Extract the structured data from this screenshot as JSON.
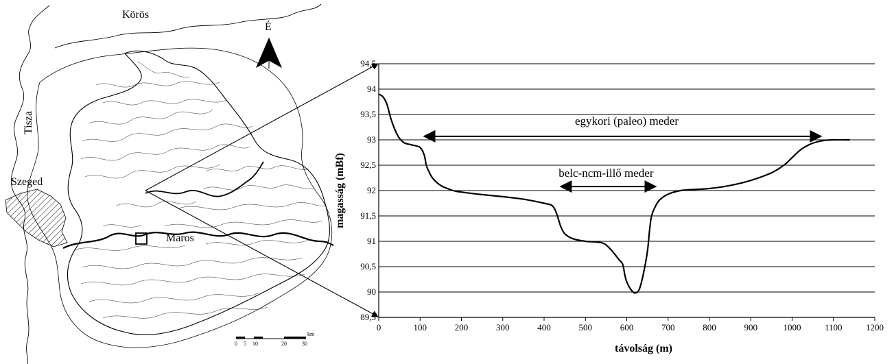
{
  "map": {
    "labels": {
      "koros": "Körös",
      "north": "É",
      "tisza": "Tisza",
      "szeged": "Szeged",
      "maros": "Maros"
    },
    "scale_bar": {
      "ticks": [
        "0",
        "5",
        "10",
        "20",
        "30"
      ],
      "unit": "km"
    },
    "icons": [
      "north-arrow-icon",
      "study-site-marker-icon"
    ]
  },
  "chart_data": {
    "type": "line",
    "xlabel": "távolság (m)",
    "ylabel": "magasság (mBf)",
    "xlim": [
      0,
      1200
    ],
    "ylim": [
      89.5,
      94.5
    ],
    "x_ticks": [
      "0",
      "100",
      "200",
      "300",
      "400",
      "500",
      "600",
      "700",
      "800",
      "900",
      "1000",
      "1100",
      "1200"
    ],
    "y_ticks": [
      "89,5",
      "90",
      "90,5",
      "91",
      "91,5",
      "92",
      "92,5",
      "93",
      "93,5",
      "94",
      "94,5"
    ],
    "grid": "horizontal",
    "series": [
      {
        "x": [
          0,
          10,
          20,
          30,
          45,
          60,
          80,
          100,
          110,
          115,
          120,
          130,
          150,
          180,
          200,
          250,
          300,
          350,
          400,
          420,
          430,
          440,
          450,
          470,
          500,
          540,
          560,
          580,
          590,
          595,
          600,
          610,
          620,
          630,
          640,
          650,
          655,
          660,
          670,
          680,
          700,
          730,
          760,
          800,
          850,
          900,
          950,
          980,
          1000,
          1020,
          1040,
          1060,
          1080,
          1100,
          1140
        ],
        "y": [
          93.9,
          93.85,
          93.7,
          93.4,
          93.1,
          92.95,
          92.9,
          92.85,
          92.7,
          92.5,
          92.4,
          92.25,
          92.1,
          92.0,
          91.97,
          91.92,
          91.88,
          91.83,
          91.75,
          91.7,
          91.55,
          91.3,
          91.15,
          91.05,
          91.0,
          90.97,
          90.85,
          90.65,
          90.55,
          90.35,
          90.2,
          90.05,
          89.98,
          90.05,
          90.35,
          90.8,
          91.2,
          91.5,
          91.7,
          91.82,
          91.93,
          92.0,
          92.02,
          92.04,
          92.1,
          92.2,
          92.35,
          92.5,
          92.65,
          92.8,
          92.9,
          92.96,
          92.99,
          93.0,
          93.0
        ]
      }
    ],
    "annotations": [
      {
        "text": "egykori (paleo) meder",
        "x": 600,
        "y": 93.3,
        "arrow_from": 110,
        "arrow_to": 1070,
        "arrow_y": 93.07
      },
      {
        "text": "belc-ncm-illő meder",
        "x": 550,
        "y": 92.27,
        "arrow_from": 440,
        "arrow_to": 670,
        "arrow_y": 92.08
      }
    ]
  }
}
